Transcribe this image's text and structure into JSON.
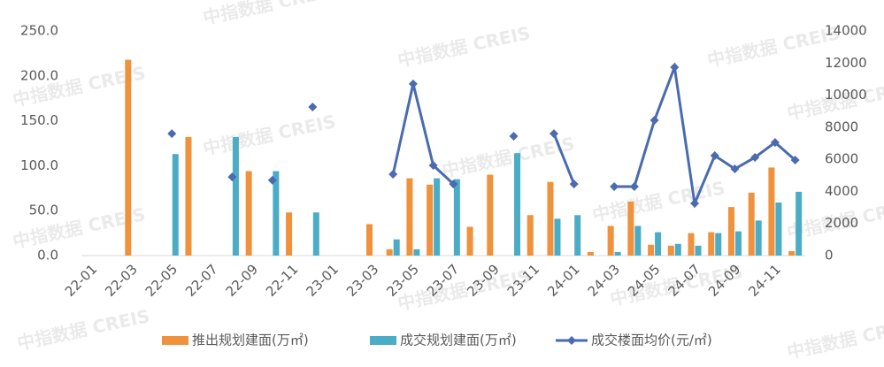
{
  "chart_data": {
    "type": "combo",
    "watermark": "中指数据 CREIS",
    "categories": [
      "22-01",
      null,
      "22-03",
      null,
      "22-05",
      null,
      "22-07",
      null,
      "22-09",
      null,
      "22-11",
      null,
      "23-01",
      null,
      "23-03",
      null,
      "23-05",
      null,
      "23-07",
      null,
      "23-09",
      null,
      "23-11",
      null,
      "24-01",
      null,
      "24-03",
      null,
      "24-05",
      null,
      "24-07",
      null,
      "24-09",
      null,
      "24-11",
      null
    ],
    "series": [
      {
        "name": "推出规划建面(万㎡)",
        "kind": "bar",
        "color": "#f0913b",
        "values": [
          null,
          null,
          218,
          null,
          null,
          132,
          null,
          null,
          94,
          null,
          48,
          null,
          null,
          null,
          35,
          7,
          86,
          79,
          null,
          32,
          90,
          null,
          45,
          82,
          null,
          4,
          33,
          60,
          12,
          11,
          25,
          26,
          54,
          70,
          98,
          5
        ]
      },
      {
        "name": "成交规划建面(万㎡)",
        "kind": "bar",
        "color": "#4bacc6",
        "values": [
          null,
          null,
          null,
          null,
          113,
          null,
          null,
          132,
          null,
          94,
          null,
          48,
          null,
          null,
          null,
          18,
          7,
          86,
          85,
          null,
          null,
          114,
          null,
          41,
          45,
          null,
          4,
          33,
          26,
          13,
          11,
          25,
          27,
          39,
          59,
          71
        ]
      },
      {
        "name": "成交楼面均价(元/㎡)",
        "kind": "line",
        "axis": "y2",
        "color": "#4a6bb0",
        "values": [
          null,
          null,
          null,
          null,
          7600,
          null,
          null,
          4900,
          null,
          4700,
          null,
          9260,
          null,
          null,
          null,
          5070,
          10700,
          5620,
          4460,
          null,
          null,
          7440,
          null,
          7600,
          4460,
          null,
          4300,
          4300,
          8430,
          11740,
          3250,
          6230,
          5400,
          6120,
          7050,
          5950
        ]
      }
    ],
    "ylim": [
      0,
      250
    ],
    "yticks": [
      {
        "value": 0,
        "label": "0.0"
      },
      {
        "value": 50,
        "label": "50.0"
      },
      {
        "value": 100,
        "label": "100.0"
      },
      {
        "value": 150,
        "label": "150.0"
      },
      {
        "value": 200,
        "label": "200.0"
      },
      {
        "value": 250,
        "label": "250.0"
      }
    ],
    "y2lim": [
      0,
      14000
    ],
    "y2ticks": [
      0,
      2000,
      4000,
      6000,
      8000,
      10000,
      12000,
      14000
    ],
    "grid": false
  }
}
